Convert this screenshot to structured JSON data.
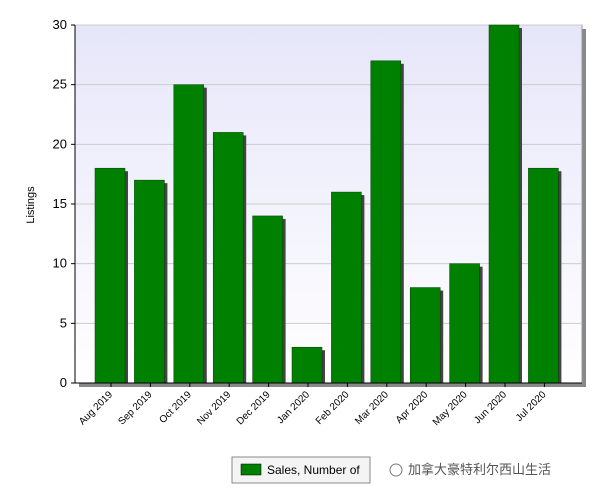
{
  "chart_data": {
    "type": "bar",
    "y_label": "Listings",
    "categories": [
      "Aug 2019",
      "Sep 2019",
      "Oct 2019",
      "Nov 2019",
      "Dec 2019",
      "Jan 2020",
      "Feb 2020",
      "Mar 2020",
      "Apr 2020",
      "May 2020",
      "Jun 2020",
      "Jul 2020"
    ],
    "series": [
      {
        "name": "Sales, Number of",
        "color": "#008000",
        "values": [
          18,
          17,
          25,
          21,
          14,
          3,
          16,
          27,
          8,
          10,
          30,
          18
        ]
      }
    ],
    "ylim": [
      0,
      30
    ],
    "yticks": [
      0,
      5,
      10,
      15,
      20,
      25,
      30
    ],
    "grid": true,
    "legend": "bottom"
  },
  "watermark": "加拿大豪特利尔西山生活"
}
